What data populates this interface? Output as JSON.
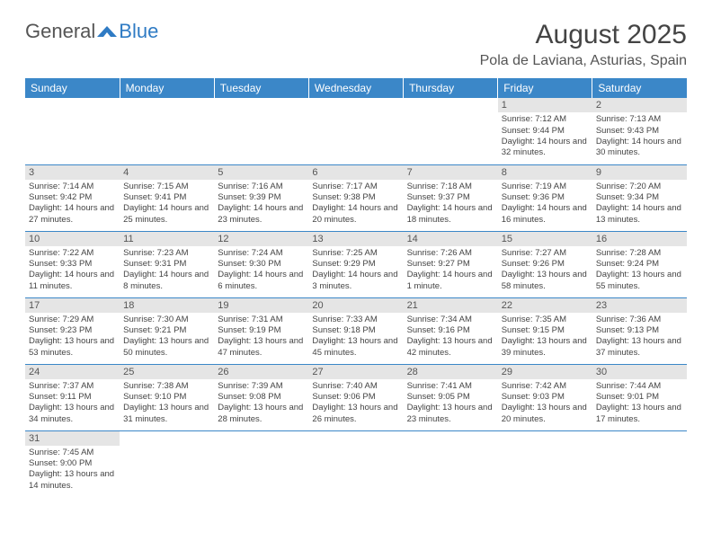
{
  "logo": {
    "text_a": "General",
    "text_b": "Blue"
  },
  "header": {
    "title": "August 2025",
    "location": "Pola de Laviana, Asturias, Spain"
  },
  "columns": [
    "Sunday",
    "Monday",
    "Tuesday",
    "Wednesday",
    "Thursday",
    "Friday",
    "Saturday"
  ],
  "colors": {
    "header_bg": "#3b87c8",
    "header_fg": "#ffffff",
    "daynum_bg": "#e5e5e5",
    "rule": "#3b87c8",
    "text": "#444444"
  },
  "first_weekday_index": 5,
  "days": [
    {
      "n": 1,
      "sunrise": "7:12 AM",
      "sunset": "9:44 PM",
      "daylight": "14 hours and 32 minutes."
    },
    {
      "n": 2,
      "sunrise": "7:13 AM",
      "sunset": "9:43 PM",
      "daylight": "14 hours and 30 minutes."
    },
    {
      "n": 3,
      "sunrise": "7:14 AM",
      "sunset": "9:42 PM",
      "daylight": "14 hours and 27 minutes."
    },
    {
      "n": 4,
      "sunrise": "7:15 AM",
      "sunset": "9:41 PM",
      "daylight": "14 hours and 25 minutes."
    },
    {
      "n": 5,
      "sunrise": "7:16 AM",
      "sunset": "9:39 PM",
      "daylight": "14 hours and 23 minutes."
    },
    {
      "n": 6,
      "sunrise": "7:17 AM",
      "sunset": "9:38 PM",
      "daylight": "14 hours and 20 minutes."
    },
    {
      "n": 7,
      "sunrise": "7:18 AM",
      "sunset": "9:37 PM",
      "daylight": "14 hours and 18 minutes."
    },
    {
      "n": 8,
      "sunrise": "7:19 AM",
      "sunset": "9:36 PM",
      "daylight": "14 hours and 16 minutes."
    },
    {
      "n": 9,
      "sunrise": "7:20 AM",
      "sunset": "9:34 PM",
      "daylight": "14 hours and 13 minutes."
    },
    {
      "n": 10,
      "sunrise": "7:22 AM",
      "sunset": "9:33 PM",
      "daylight": "14 hours and 11 minutes."
    },
    {
      "n": 11,
      "sunrise": "7:23 AM",
      "sunset": "9:31 PM",
      "daylight": "14 hours and 8 minutes."
    },
    {
      "n": 12,
      "sunrise": "7:24 AM",
      "sunset": "9:30 PM",
      "daylight": "14 hours and 6 minutes."
    },
    {
      "n": 13,
      "sunrise": "7:25 AM",
      "sunset": "9:29 PM",
      "daylight": "14 hours and 3 minutes."
    },
    {
      "n": 14,
      "sunrise": "7:26 AM",
      "sunset": "9:27 PM",
      "daylight": "14 hours and 1 minute."
    },
    {
      "n": 15,
      "sunrise": "7:27 AM",
      "sunset": "9:26 PM",
      "daylight": "13 hours and 58 minutes."
    },
    {
      "n": 16,
      "sunrise": "7:28 AM",
      "sunset": "9:24 PM",
      "daylight": "13 hours and 55 minutes."
    },
    {
      "n": 17,
      "sunrise": "7:29 AM",
      "sunset": "9:23 PM",
      "daylight": "13 hours and 53 minutes."
    },
    {
      "n": 18,
      "sunrise": "7:30 AM",
      "sunset": "9:21 PM",
      "daylight": "13 hours and 50 minutes."
    },
    {
      "n": 19,
      "sunrise": "7:31 AM",
      "sunset": "9:19 PM",
      "daylight": "13 hours and 47 minutes."
    },
    {
      "n": 20,
      "sunrise": "7:33 AM",
      "sunset": "9:18 PM",
      "daylight": "13 hours and 45 minutes."
    },
    {
      "n": 21,
      "sunrise": "7:34 AM",
      "sunset": "9:16 PM",
      "daylight": "13 hours and 42 minutes."
    },
    {
      "n": 22,
      "sunrise": "7:35 AM",
      "sunset": "9:15 PM",
      "daylight": "13 hours and 39 minutes."
    },
    {
      "n": 23,
      "sunrise": "7:36 AM",
      "sunset": "9:13 PM",
      "daylight": "13 hours and 37 minutes."
    },
    {
      "n": 24,
      "sunrise": "7:37 AM",
      "sunset": "9:11 PM",
      "daylight": "13 hours and 34 minutes."
    },
    {
      "n": 25,
      "sunrise": "7:38 AM",
      "sunset": "9:10 PM",
      "daylight": "13 hours and 31 minutes."
    },
    {
      "n": 26,
      "sunrise": "7:39 AM",
      "sunset": "9:08 PM",
      "daylight": "13 hours and 28 minutes."
    },
    {
      "n": 27,
      "sunrise": "7:40 AM",
      "sunset": "9:06 PM",
      "daylight": "13 hours and 26 minutes."
    },
    {
      "n": 28,
      "sunrise": "7:41 AM",
      "sunset": "9:05 PM",
      "daylight": "13 hours and 23 minutes."
    },
    {
      "n": 29,
      "sunrise": "7:42 AM",
      "sunset": "9:03 PM",
      "daylight": "13 hours and 20 minutes."
    },
    {
      "n": 30,
      "sunrise": "7:44 AM",
      "sunset": "9:01 PM",
      "daylight": "13 hours and 17 minutes."
    },
    {
      "n": 31,
      "sunrise": "7:45 AM",
      "sunset": "9:00 PM",
      "daylight": "13 hours and 14 minutes."
    }
  ],
  "labels": {
    "sunrise": "Sunrise:",
    "sunset": "Sunset:",
    "daylight": "Daylight:"
  }
}
